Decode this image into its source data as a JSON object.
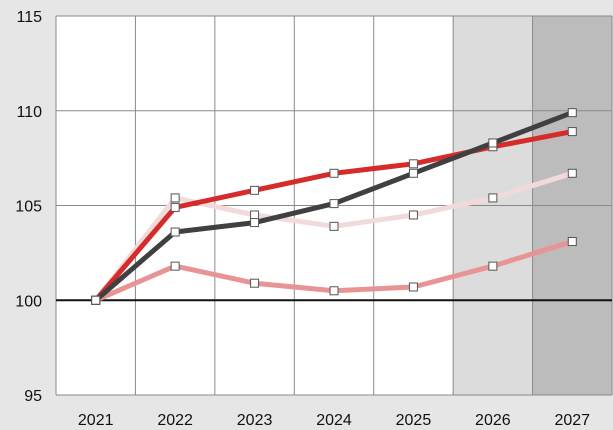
{
  "chart_data": {
    "type": "line",
    "title": "",
    "xlabel": "",
    "ylabel": "",
    "x": [
      "2021",
      "2022",
      "2023",
      "2024",
      "2025",
      "2026",
      "2027"
    ],
    "ylim": [
      95,
      115
    ],
    "yticks": [
      95,
      100,
      105,
      110,
      115
    ],
    "grid": true,
    "legend": "none",
    "reference_line": 100,
    "shaded_columns": [
      {
        "category": "2026",
        "color": "#dcdcdc"
      },
      {
        "category": "2027",
        "color": "#bcbcbc"
      }
    ],
    "series": [
      {
        "values": [
          100,
          104.9,
          105.8,
          106.7,
          107.2,
          108.1,
          108.9
        ],
        "color": "#d62b2b"
      },
      {
        "values": [
          100,
          103.6,
          104.1,
          105.1,
          106.7,
          108.3,
          109.9
        ],
        "color": "#404040"
      },
      {
        "values": [
          100,
          105.4,
          104.5,
          103.9,
          104.5,
          105.4,
          106.7
        ],
        "color": "#f2dada"
      },
      {
        "values": [
          100,
          101.8,
          100.9,
          100.5,
          100.7,
          101.8,
          103.1
        ],
        "color": "#e89494"
      }
    ]
  }
}
